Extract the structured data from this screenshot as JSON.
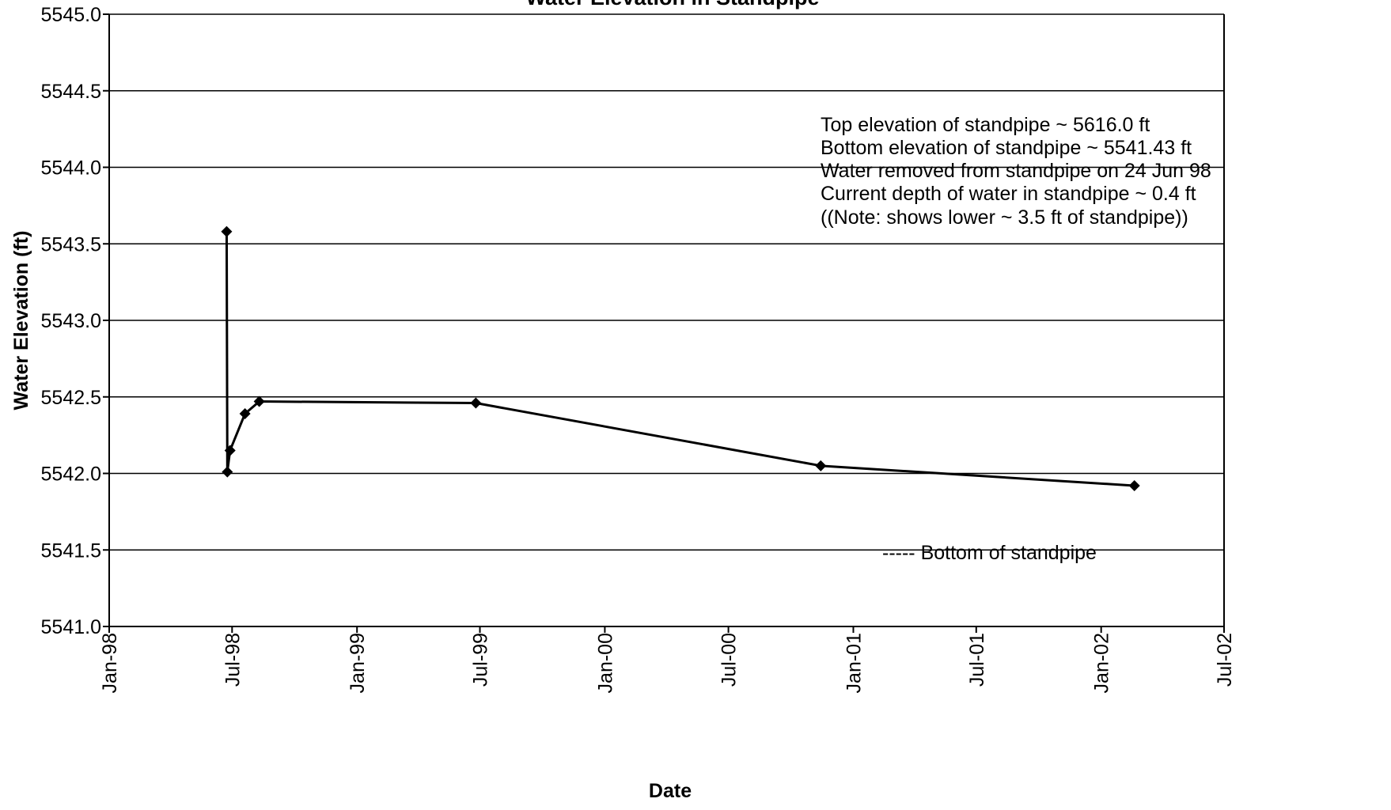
{
  "chart_data": {
    "type": "line",
    "title": "Water Elevation in Standpipe",
    "xlabel": "Date",
    "ylabel": "Water Elevation (ft)",
    "x_ticks": [
      "1998-01-01",
      "1998-07-01",
      "1999-01-01",
      "1999-07-01",
      "2000-01-01",
      "2000-07-01",
      "2001-01-01",
      "2001-07-01",
      "2002-01-01",
      "2002-07-01"
    ],
    "x_tick_labels": [
      "Jan-98",
      "Jul-98",
      "Jan-99",
      "Jul-99",
      "Jan-00",
      "Jul-00",
      "Jan-01",
      "Jul-01",
      "Jan-02",
      "Jul-02"
    ],
    "xlim": [
      "1998-01-01",
      "2002-07-01"
    ],
    "ylim": [
      5541.0,
      5545.0
    ],
    "y_ticks": [
      5541.0,
      5541.5,
      5542.0,
      5542.5,
      5543.0,
      5543.5,
      5544.0,
      5544.5,
      5545.0
    ],
    "y_tick_labels": [
      "5541.0",
      "5541.5",
      "5542.0",
      "5542.5",
      "5543.0",
      "5543.5",
      "5544.0",
      "5544.5",
      "5545.0"
    ],
    "grid": true,
    "series": [
      {
        "x": [
          "1998-06-23",
          "1998-06-24",
          "1998-06-28",
          "1998-07-20",
          "1998-08-10",
          "1999-06-25",
          "2000-11-14",
          "2002-02-19"
        ],
        "y": [
          5543.58,
          5542.01,
          5542.15,
          5542.39,
          5542.47,
          5542.46,
          5542.05,
          5541.92
        ]
      }
    ],
    "annotations": [
      "Top elevation of standpipe ~ 5616.0 ft",
      "Bottom elevation of standpipe ~ 5541.43 ft",
      "Water removed from standpipe on 24 Jun 98",
      "Current depth of water in standpipe ~ 0.4 ft",
      "((Note:  shows lower ~ 3.5 ft of standpipe))"
    ],
    "legend_note": "----- Bottom of standpipe"
  }
}
